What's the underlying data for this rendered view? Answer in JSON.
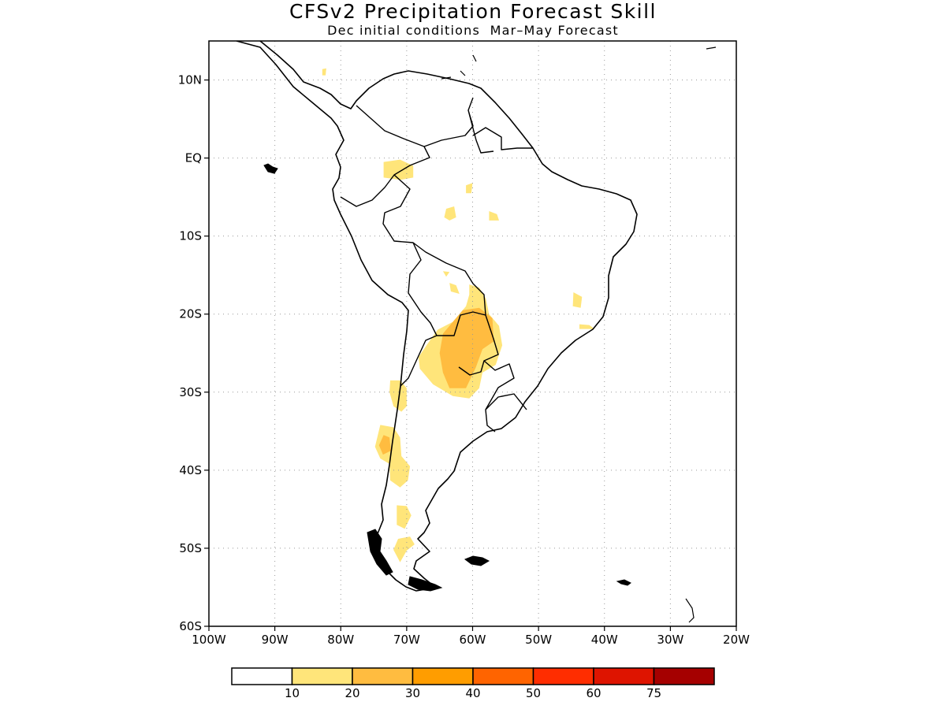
{
  "title": "CFSv2 Precipitation Forecast Skill",
  "subtitle": "Dec initial conditions  Mar–May Forecast",
  "map": {
    "region": "South America",
    "lon_range": [
      -100,
      -20
    ],
    "lat_range": [
      -60,
      15
    ],
    "grid": "dotted",
    "lat_labels": [
      {
        "lat": 10,
        "label": "10N"
      },
      {
        "lat": 0,
        "label": "EQ"
      },
      {
        "lat": -10,
        "label": "10S"
      },
      {
        "lat": -20,
        "label": "20S"
      },
      {
        "lat": -30,
        "label": "30S"
      },
      {
        "lat": -40,
        "label": "40S"
      },
      {
        "lat": -50,
        "label": "50S"
      },
      {
        "lat": -60,
        "label": "60S"
      }
    ],
    "lon_labels": [
      {
        "lon": -100,
        "label": "100W"
      },
      {
        "lon": -90,
        "label": "90W"
      },
      {
        "lon": -80,
        "label": "80W"
      },
      {
        "lon": -70,
        "label": "70W"
      },
      {
        "lon": -60,
        "label": "60W"
      },
      {
        "lon": -50,
        "label": "50W"
      },
      {
        "lon": -40,
        "label": "40W"
      },
      {
        "lon": -30,
        "label": "30W"
      },
      {
        "lon": -20,
        "label": "20W"
      }
    ],
    "skill_regions": [
      {
        "level": 10,
        "pts": [
          [
            -73.5,
            -0.5
          ],
          [
            -71,
            -0.2
          ],
          [
            -69,
            -1
          ],
          [
            -69,
            -2.5
          ],
          [
            -71,
            -2.8
          ],
          [
            -73.5,
            -2.5
          ]
        ]
      },
      {
        "level": 10,
        "pts": [
          [
            -61,
            -3.5
          ],
          [
            -60,
            -3.2
          ],
          [
            -60.2,
            -4.5
          ],
          [
            -61,
            -4.5
          ]
        ]
      },
      {
        "level": 10,
        "pts": [
          [
            -64,
            -6.5
          ],
          [
            -62.8,
            -6.2
          ],
          [
            -62.5,
            -7.6
          ],
          [
            -63.5,
            -8
          ],
          [
            -64.3,
            -7.6
          ]
        ]
      },
      {
        "level": 10,
        "pts": [
          [
            -57.5,
            -6.8
          ],
          [
            -56.3,
            -7.2
          ],
          [
            -56,
            -8
          ],
          [
            -57.5,
            -8
          ]
        ]
      },
      {
        "level": 10,
        "pts": [
          [
            -64.5,
            -14.5
          ],
          [
            -63.5,
            -14.6
          ],
          [
            -64,
            -15.2
          ]
        ]
      },
      {
        "level": 10,
        "pts": [
          [
            -63.5,
            -16
          ],
          [
            -62.5,
            -16.3
          ],
          [
            -62,
            -17.4
          ],
          [
            -63.3,
            -17.1
          ]
        ]
      },
      {
        "level": 10,
        "pts": [
          [
            -60.5,
            -16.2
          ],
          [
            -59,
            -16.6
          ],
          [
            -58,
            -18
          ],
          [
            -57.5,
            -20
          ],
          [
            -56,
            -21.5
          ],
          [
            -55.5,
            -24
          ],
          [
            -56.5,
            -26.5
          ],
          [
            -58.5,
            -27.5
          ],
          [
            -59,
            -29.5
          ],
          [
            -60.5,
            -30.8
          ],
          [
            -63,
            -30.5
          ],
          [
            -66,
            -29
          ],
          [
            -68,
            -27
          ],
          [
            -68.2,
            -25.5
          ],
          [
            -67,
            -24
          ],
          [
            -65.3,
            -22
          ],
          [
            -63,
            -21
          ],
          [
            -61,
            -19
          ],
          [
            -60.5,
            -17.5
          ]
        ]
      },
      {
        "level": 20,
        "pts": [
          [
            -61.5,
            -19.5
          ],
          [
            -59,
            -19.2
          ],
          [
            -57,
            -20.5
          ],
          [
            -56.8,
            -23.5
          ],
          [
            -58.5,
            -24.5
          ],
          [
            -59.5,
            -26.8
          ],
          [
            -61,
            -29.5
          ],
          [
            -63.5,
            -29.5
          ],
          [
            -64.5,
            -27.5
          ],
          [
            -65,
            -25
          ],
          [
            -64.5,
            -22.5
          ],
          [
            -63,
            -21
          ]
        ]
      },
      {
        "level": 10,
        "pts": [
          [
            -72.5,
            -28.5
          ],
          [
            -71,
            -28.5
          ],
          [
            -70,
            -29.5
          ],
          [
            -70,
            -31.8
          ],
          [
            -70.8,
            -32.5
          ],
          [
            -72,
            -31.8
          ],
          [
            -72.6,
            -30
          ]
        ]
      },
      {
        "level": 10,
        "pts": [
          [
            -74,
            -34.2
          ],
          [
            -72,
            -34.5
          ],
          [
            -71,
            -35.8
          ],
          [
            -70.8,
            -38.2
          ],
          [
            -69.5,
            -39.5
          ],
          [
            -69.8,
            -41.3
          ],
          [
            -71,
            -42.2
          ],
          [
            -72.5,
            -41.3
          ],
          [
            -72.6,
            -39.2
          ],
          [
            -74,
            -38.5
          ],
          [
            -74.8,
            -37
          ]
        ]
      },
      {
        "level": 20,
        "pts": [
          [
            -73.5,
            -35.5
          ],
          [
            -72.6,
            -35.8
          ],
          [
            -72.4,
            -37.5
          ],
          [
            -73.6,
            -38
          ],
          [
            -74.2,
            -36.8
          ]
        ]
      },
      {
        "level": 10,
        "pts": [
          [
            -71.5,
            -44.5
          ],
          [
            -70,
            -44.6
          ],
          [
            -69.3,
            -45.8
          ],
          [
            -70.3,
            -47.5
          ],
          [
            -71.5,
            -47
          ]
        ]
      },
      {
        "level": 10,
        "pts": [
          [
            -71.3,
            -48.8
          ],
          [
            -69.5,
            -48.5
          ],
          [
            -68.8,
            -49.5
          ],
          [
            -70,
            -50.3
          ],
          [
            -71,
            -51.8
          ],
          [
            -72,
            -50.2
          ]
        ]
      },
      {
        "level": 10,
        "pts": [
          [
            -44.7,
            -17.2
          ],
          [
            -43.4,
            -17.8
          ],
          [
            -43.6,
            -19.2
          ],
          [
            -44.8,
            -19
          ]
        ]
      },
      {
        "level": 10,
        "pts": [
          [
            -43.8,
            -21.3
          ],
          [
            -42.3,
            -21.4
          ],
          [
            -41.5,
            -21.9
          ],
          [
            -43.8,
            -21.9
          ]
        ]
      },
      {
        "level": 10,
        "pts": [
          [
            -82.8,
            11.4
          ],
          [
            -82.2,
            11.5
          ],
          [
            -82.3,
            10.6
          ],
          [
            -82.8,
            10.6
          ]
        ]
      }
    ]
  },
  "colorbar": {
    "boxes": [
      "#ffffff",
      "#ffe57a",
      "#ffbc40",
      "#ff9d00",
      "#ff6400",
      "#ff2d00",
      "#de1400",
      "#a50000"
    ],
    "labels": [
      "10",
      "20",
      "30",
      "40",
      "50",
      "60",
      "75"
    ]
  }
}
